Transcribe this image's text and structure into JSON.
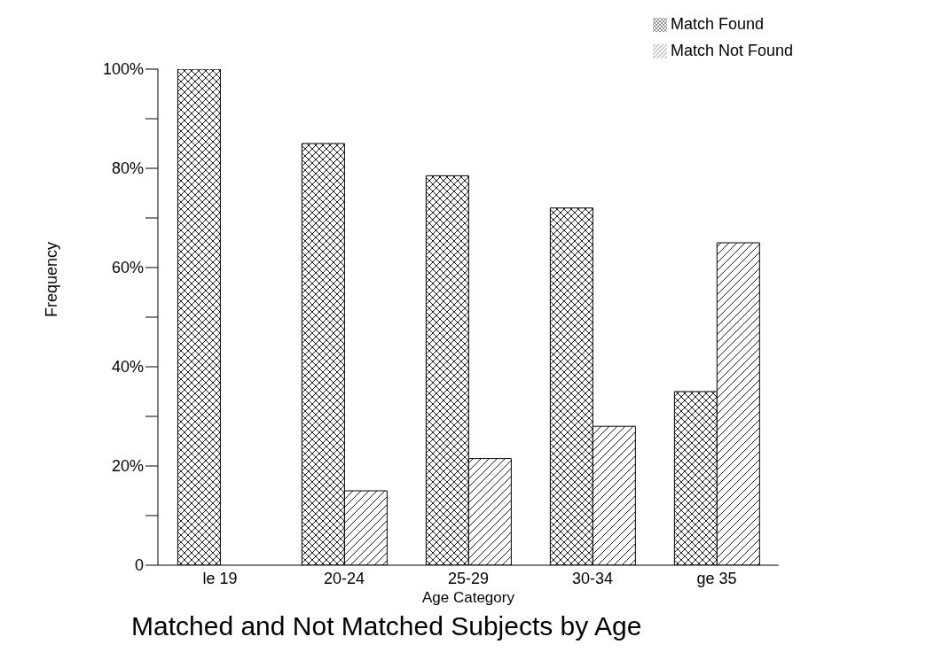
{
  "chart_data": {
    "type": "bar",
    "title": "Matched and Not Matched Subjects by Age",
    "xlabel": "Age Category",
    "ylabel": "Frequency",
    "categories": [
      "le 19",
      "20-24",
      "25-29",
      "30-34",
      "ge 35"
    ],
    "series": [
      {
        "name": "Match Found",
        "color": "#000000",
        "values": [
          100,
          85,
          78.5,
          72,
          35
        ]
      },
      {
        "name": "Match Not Found",
        "color": "#000000",
        "values": [
          0,
          15,
          21.5,
          28,
          65
        ]
      }
    ],
    "ylim": [
      0,
      100
    ],
    "yticks": [
      {
        "value": 0,
        "label": "0"
      },
      {
        "value": 10,
        "label": null
      },
      {
        "value": 20,
        "label": "20%"
      },
      {
        "value": 30,
        "label": null
      },
      {
        "value": 40,
        "label": "40%"
      },
      {
        "value": 50,
        "label": null
      },
      {
        "value": 60,
        "label": "60%"
      },
      {
        "value": 70,
        "label": null
      },
      {
        "value": 80,
        "label": "80%"
      },
      {
        "value": 90,
        "label": null
      },
      {
        "value": 100,
        "label": "100%"
      }
    ],
    "grid": false,
    "legend": "top right"
  }
}
